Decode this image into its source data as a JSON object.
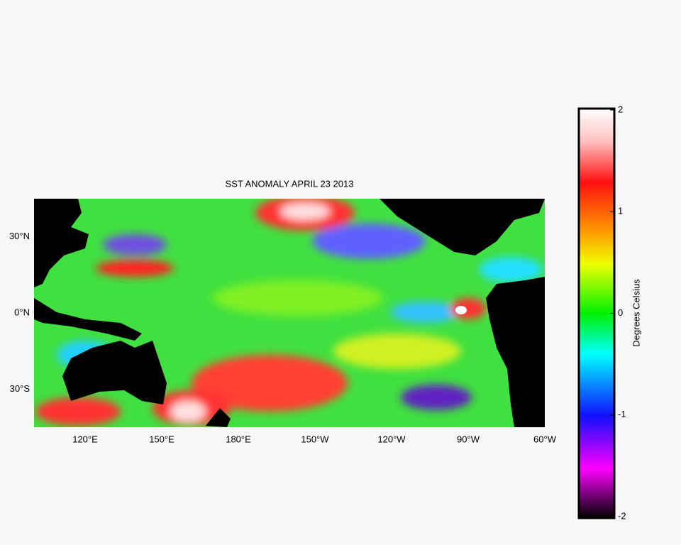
{
  "title": "SST ANOMALY APRIL 23 2013",
  "map": {
    "xlim": [
      100,
      300
    ],
    "ylim": [
      -45,
      45
    ],
    "xticks": [
      {
        "value": 120,
        "label": "120°E"
      },
      {
        "value": 150,
        "label": "150°E"
      },
      {
        "value": 180,
        "label": "180°E"
      },
      {
        "value": 210,
        "label": "150°W"
      },
      {
        "value": 240,
        "label": "120°W"
      },
      {
        "value": 270,
        "label": "90°W"
      },
      {
        "value": 300,
        "label": "60°W"
      }
    ],
    "yticks": [
      {
        "value": 30,
        "label": "30°N"
      },
      {
        "value": 0,
        "label": "0°N"
      },
      {
        "value": -30,
        "label": "30°S"
      }
    ]
  },
  "colorbar": {
    "label": "Degrees Celsius",
    "lim": [
      -2,
      2
    ],
    "ticks": [
      2,
      1,
      0,
      -1,
      -2
    ]
  }
}
